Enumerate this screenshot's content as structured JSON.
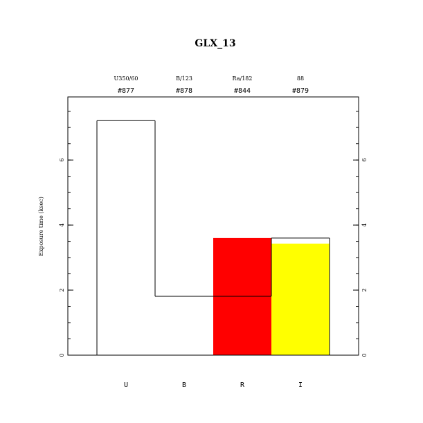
{
  "chart_data": {
    "type": "bar",
    "title": "GLX_13",
    "ylabel": "Exposure time (ksec)",
    "categories": [
      "U",
      "B",
      "R",
      "I"
    ],
    "filters": [
      "U350/60",
      "B/123",
      "Ra/182",
      "88"
    ],
    "ids": [
      "#877",
      "#878",
      "#844",
      "#879"
    ],
    "series": [
      {
        "values": [
          null,
          null,
          3.6,
          3.43
        ],
        "colors": [
          null,
          null,
          "#ff0000",
          "#ffff00"
        ]
      },
      {
        "values": [
          7.21,
          1.81,
          1.81,
          3.6
        ],
        "color": "#000000",
        "style": "step"
      }
    ],
    "ylim": [
      0,
      7.94
    ],
    "yticks": [
      0,
      2,
      4,
      6
    ],
    "yminor": 0.5,
    "right_axis": true
  }
}
